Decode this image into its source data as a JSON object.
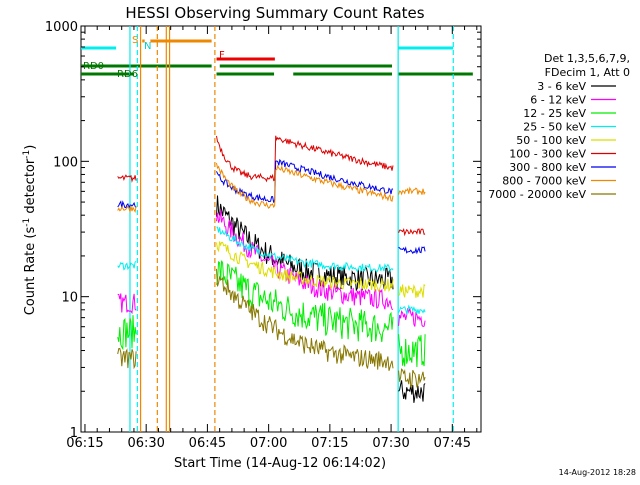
{
  "chart_data": {
    "type": "line",
    "title": "HESSI Observing Summary Count Rates",
    "xlabel": "Start Time (14-Aug-12 06:14:02)",
    "ylabel": "Count Rate (s",
    "ylabel_sup1": "-1",
    "ylabel_mid": " detector",
    "ylabel_sup2": "-1",
    "ylabel_end": ")",
    "y_scale": "log",
    "ylim": [
      1,
      1000
    ],
    "xlim_minutes": [
      0,
      98
    ],
    "x_ticks": [
      {
        "label": "06:15",
        "minute": 0.97
      },
      {
        "label": "06:30",
        "minute": 15.97
      },
      {
        "label": "06:45",
        "minute": 30.97
      },
      {
        "label": "07:00",
        "minute": 45.97
      },
      {
        "label": "07:15",
        "minute": 60.97
      },
      {
        "label": "07:30",
        "minute": 75.97
      },
      {
        "label": "07:45",
        "minute": 90.97
      }
    ],
    "y_ticks": [
      {
        "label": "1",
        "value": 1
      },
      {
        "label": "10",
        "value": 10
      },
      {
        "label": "100",
        "value": 100
      },
      {
        "label": "1000",
        "value": 1000
      }
    ],
    "legend_header": [
      "Det 1,3,5,6,7,9,",
      "FDecim 1, Att 0"
    ],
    "legend_placement": "right",
    "series": [
      {
        "name": "3 - 6 keV",
        "color": "#000000",
        "key": "a"
      },
      {
        "name": "6 - 12 keV",
        "color": "#ff00ff",
        "key": "b"
      },
      {
        "name": "12 - 25 keV",
        "color": "#00ee00",
        "key": "c"
      },
      {
        "name": "25 - 50 keV",
        "color": "#00eeee",
        "key": "d"
      },
      {
        "name": "50 - 100 keV",
        "color": "#dddd00",
        "key": "e"
      },
      {
        "name": "100 - 300 keV",
        "color": "#dd0000",
        "key": "f"
      },
      {
        "name": "300 - 800 keV",
        "color": "#0000ee",
        "key": "g"
      },
      {
        "name": "800 - 7000 keV",
        "color": "#ee8800",
        "key": "h"
      },
      {
        "name": "7000 - 20000 keV",
        "color": "#887700",
        "key": "i"
      }
    ],
    "annotations": {
      "saa_label": "S",
      "night_label": "N",
      "flare_label": "F",
      "rd0_label": "RD0",
      "rd6_label": "RD6",
      "saa_bars": [
        [
          15,
          15.6
        ],
        [
          17,
          32
        ]
      ],
      "night_bars": [
        [
          0,
          8.6
        ],
        [
          77.7,
          91.2
        ]
      ],
      "flare_bars": [
        [
          33.2,
          47.5
        ]
      ],
      "rd0_bars": [
        [
          0,
          32
        ],
        [
          34,
          76.2
        ]
      ],
      "rd6_bars": [
        [
          0,
          13
        ],
        [
          33.2,
          47.3
        ],
        [
          52,
          76.2
        ],
        [
          77.7,
          96
        ]
      ],
      "orange_solid_lines": [
        14.6,
        20.9,
        21.7
      ],
      "orange_dashed_lines": [
        18.7,
        32.8
      ],
      "cyan_solid_lines": [
        12.0,
        77.7
      ],
      "cyan_dashed_lines": [
        13.8,
        91.2
      ]
    }
  },
  "footer": {
    "timestamp": "14-Aug-2012 18:28"
  }
}
